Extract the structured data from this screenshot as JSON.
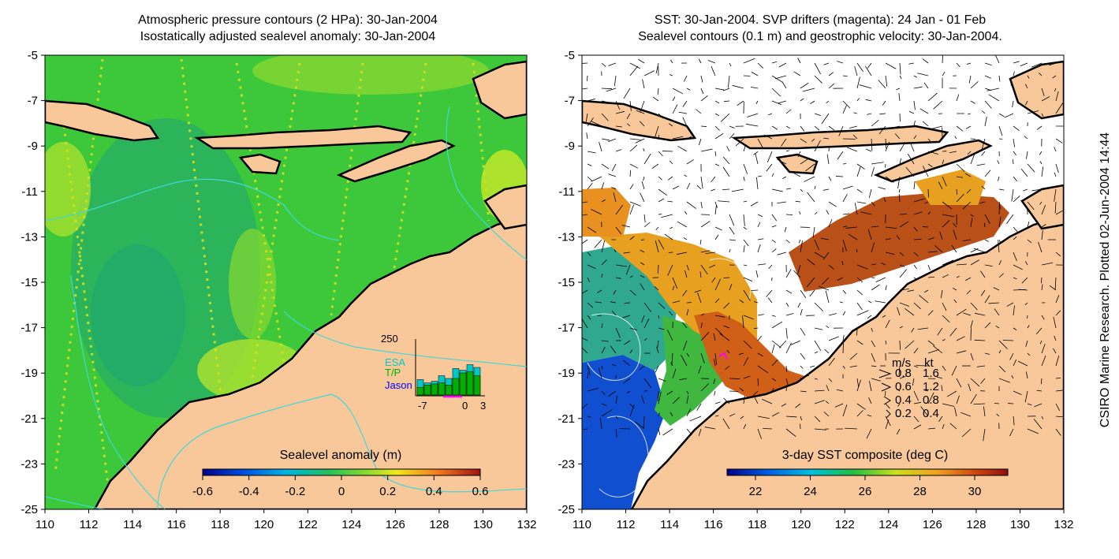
{
  "left_panel": {
    "title_line1": "Atmospheric pressure contours (2 HPa): 30-Jan-2004",
    "title_line2": "Isostatically adjusted sealevel anomaly: 30-Jan-2004",
    "colorbar_label": "Sealevel anomaly (m)",
    "colorbar_ticks": [
      "-0.6",
      "-0.4",
      "-0.2",
      "0",
      "0.2",
      "0.4",
      "0.6"
    ],
    "inset": {
      "ymax_label": "250",
      "legend": [
        "ESA",
        "T/P",
        "Jason"
      ],
      "legend_colors": [
        "#00c8c8",
        "#00b000",
        "#0000ff"
      ],
      "xticks": [
        "-7",
        "0",
        "3"
      ],
      "bars": [
        {
          "cyan": 0.28,
          "green": 0.14
        },
        {
          "cyan": 0.22,
          "green": 0.18
        },
        {
          "cyan": 0.25,
          "green": 0.2
        },
        {
          "cyan": 0.35,
          "green": 0.22
        },
        {
          "cyan": 0.3,
          "green": 0.18
        },
        {
          "cyan": 0.48,
          "green": 0.3
        },
        {
          "cyan": 0.45,
          "green": 0.4
        },
        {
          "cyan": 0.55,
          "green": 0.42
        },
        {
          "cyan": 0.5,
          "green": 0.35
        }
      ]
    }
  },
  "right_panel": {
    "title_line1": "SST: 30-Jan-2004. SVP drifters (magenta): 24 Jan - 01 Feb",
    "title_line2": "Sealevel contours (0.1 m) and geostrophic velocity: 30-Jan-2004.",
    "colorbar_label": "3-day SST composite (deg C)",
    "colorbar_ticks": [
      "22",
      "24",
      "26",
      "28",
      "30"
    ],
    "velocity_legend": {
      "header_ms": "m/s",
      "header_kt": "kt",
      "rows": [
        {
          "ms": "0.8",
          "kt": "1.6"
        },
        {
          "ms": "0.6",
          "kt": "1.2"
        },
        {
          "ms": "0.4",
          "kt": "0.8"
        },
        {
          "ms": "0.2",
          "kt": "0.4"
        }
      ]
    }
  },
  "axes": {
    "y_ticks": [
      "-5",
      "-7",
      "-9",
      "-11",
      "-13",
      "-15",
      "-17",
      "-19",
      "-21",
      "-23",
      "-25"
    ],
    "x_ticks": [
      "110",
      "112",
      "114",
      "116",
      "118",
      "120",
      "122",
      "124",
      "126",
      "128",
      "130",
      "132"
    ],
    "lon_range": [
      110,
      132
    ],
    "lat_range": [
      -25,
      -5
    ]
  },
  "colors": {
    "land": "#f9c89a",
    "ocean_anomaly": "#38c83c",
    "ocean_dark": "#22b45c",
    "coast": "#000000",
    "pressure_contour": "#40d8d8"
  },
  "side_text": "CSIRO Marine Research. Plotted 02-Jun-2004 14:44"
}
